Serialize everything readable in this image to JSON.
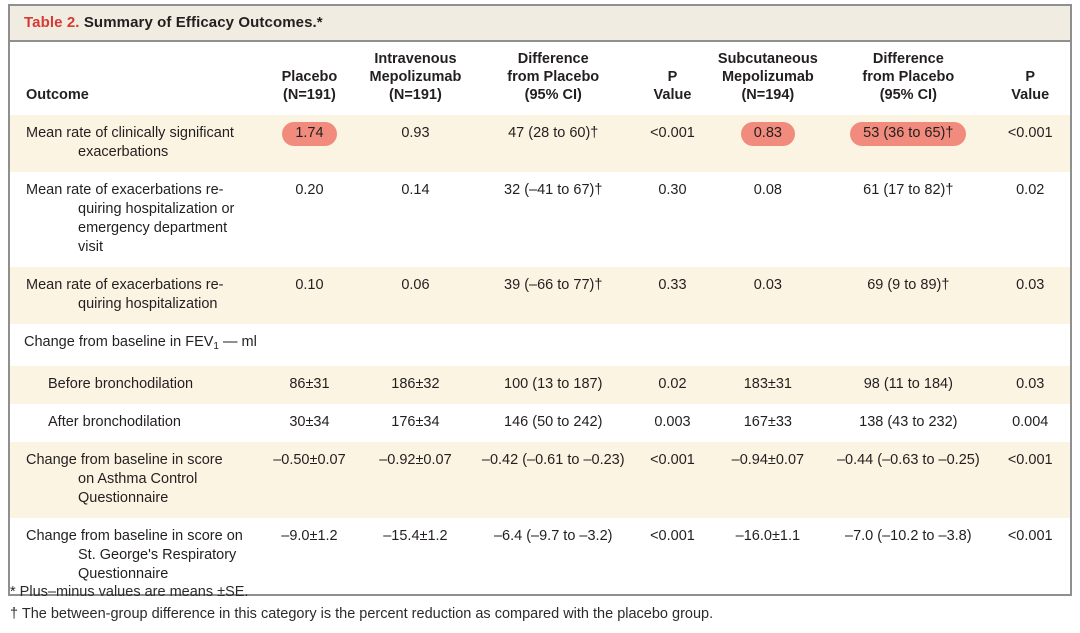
{
  "table": {
    "label": "Table 2.",
    "title": "Summary of Efficacy Outcomes.*",
    "columns": [
      {
        "id": "outcome",
        "lines": [
          "Outcome"
        ],
        "align": "left"
      },
      {
        "id": "placebo",
        "lines": [
          "Placebo",
          "(N=191)"
        ]
      },
      {
        "id": "iv",
        "lines": [
          "Intravenous",
          "Mepolizumab",
          "(N=191)"
        ]
      },
      {
        "id": "diff1",
        "lines": [
          "Difference",
          "from Placebo",
          "(95% CI)"
        ]
      },
      {
        "id": "p1",
        "lines": [
          "P",
          "Value"
        ]
      },
      {
        "id": "sc",
        "lines": [
          "Subcutaneous",
          "Mepolizumab",
          "(N=194)"
        ]
      },
      {
        "id": "diff2",
        "lines": [
          "Difference",
          "from Placebo",
          "(95% CI)"
        ]
      },
      {
        "id": "p2",
        "lines": [
          "P",
          "Value"
        ]
      }
    ],
    "rows": [
      {
        "style": "hang",
        "outcome_lines": [
          "Mean rate of clinically significant",
          "exacerbations"
        ],
        "cells": [
          {
            "text": "1.74",
            "highlight": true
          },
          {
            "text": "0.93"
          },
          {
            "text": "47 (28 to 60)†"
          },
          {
            "text": "<0.001"
          },
          {
            "text": "0.83",
            "highlight": true
          },
          {
            "text": "53 (36 to 65)†",
            "highlight": true
          },
          {
            "text": "<0.001"
          }
        ]
      },
      {
        "style": "hang",
        "outcome_lines": [
          "Mean rate of exacerbations re-",
          "quiring hospitalization or",
          "emergency department",
          "visit"
        ],
        "cells": [
          {
            "text": "0.20"
          },
          {
            "text": "0.14"
          },
          {
            "text": "32 (–41 to 67)†"
          },
          {
            "text": "0.30"
          },
          {
            "text": "0.08"
          },
          {
            "text": "61 (17 to 82)†"
          },
          {
            "text": "0.02"
          }
        ]
      },
      {
        "style": "hang",
        "outcome_lines": [
          "Mean rate of exacerbations re-",
          "quiring hospitalization"
        ],
        "cells": [
          {
            "text": "0.10"
          },
          {
            "text": "0.06"
          },
          {
            "text": "39 (–66 to 77)†"
          },
          {
            "text": "0.33"
          },
          {
            "text": "0.03"
          },
          {
            "text": "69 (9 to 89)†"
          },
          {
            "text": "0.03"
          }
        ]
      },
      {
        "style": "section",
        "outcome_lines": [
          "Change from baseline in FEV|1| — ml"
        ],
        "cells": []
      },
      {
        "style": "sub",
        "outcome_lines": [
          "Before bronchodilation"
        ],
        "cells": [
          {
            "text": "86±31"
          },
          {
            "text": "186±32"
          },
          {
            "text": "100 (13 to 187)"
          },
          {
            "text": "0.02"
          },
          {
            "text": "183±31"
          },
          {
            "text": "98 (11 to 184)"
          },
          {
            "text": "0.03"
          }
        ]
      },
      {
        "style": "sub",
        "outcome_lines": [
          "After bronchodilation"
        ],
        "cells": [
          {
            "text": "30±34"
          },
          {
            "text": "176±34"
          },
          {
            "text": "146 (50 to 242)"
          },
          {
            "text": "0.003"
          },
          {
            "text": "167±33"
          },
          {
            "text": "138 (43 to 232)"
          },
          {
            "text": "0.004"
          }
        ]
      },
      {
        "style": "hang",
        "outcome_lines": [
          "Change from baseline in score",
          "on Asthma Control",
          "Questionnaire"
        ],
        "cells": [
          {
            "text": "–0.50±0.07"
          },
          {
            "text": "–0.92±0.07"
          },
          {
            "text": "–0.42 (–0.61 to –0.23)"
          },
          {
            "text": "<0.001"
          },
          {
            "text": "–0.94±0.07"
          },
          {
            "text": "–0.44 (–0.63 to –0.25)"
          },
          {
            "text": "<0.001"
          }
        ]
      },
      {
        "style": "hang",
        "outcome_lines": [
          "Change from baseline in score on",
          "St. George's Respiratory",
          "Questionnaire"
        ],
        "cells": [
          {
            "text": "–9.0±1.2"
          },
          {
            "text": "–15.4±1.2"
          },
          {
            "text": "–6.4 (–9.7 to –3.2)"
          },
          {
            "text": "<0.001"
          },
          {
            "text": "–16.0±1.1"
          },
          {
            "text": "–7.0 (–10.2 to –3.8)"
          },
          {
            "text": "<0.001"
          }
        ]
      }
    ]
  },
  "footnotes": [
    "* Plus–minus values are means ±SE.",
    "† The between-group difference in this category is the percent reduction as compared with the placebo group."
  ],
  "colors": {
    "highlight": "#f08b7d",
    "title_label_red": "#d63a32",
    "stripe_cream": "#fcf4e2",
    "title_bar_bg": "#f1ece1",
    "border_gray": "#8f8f8f"
  }
}
